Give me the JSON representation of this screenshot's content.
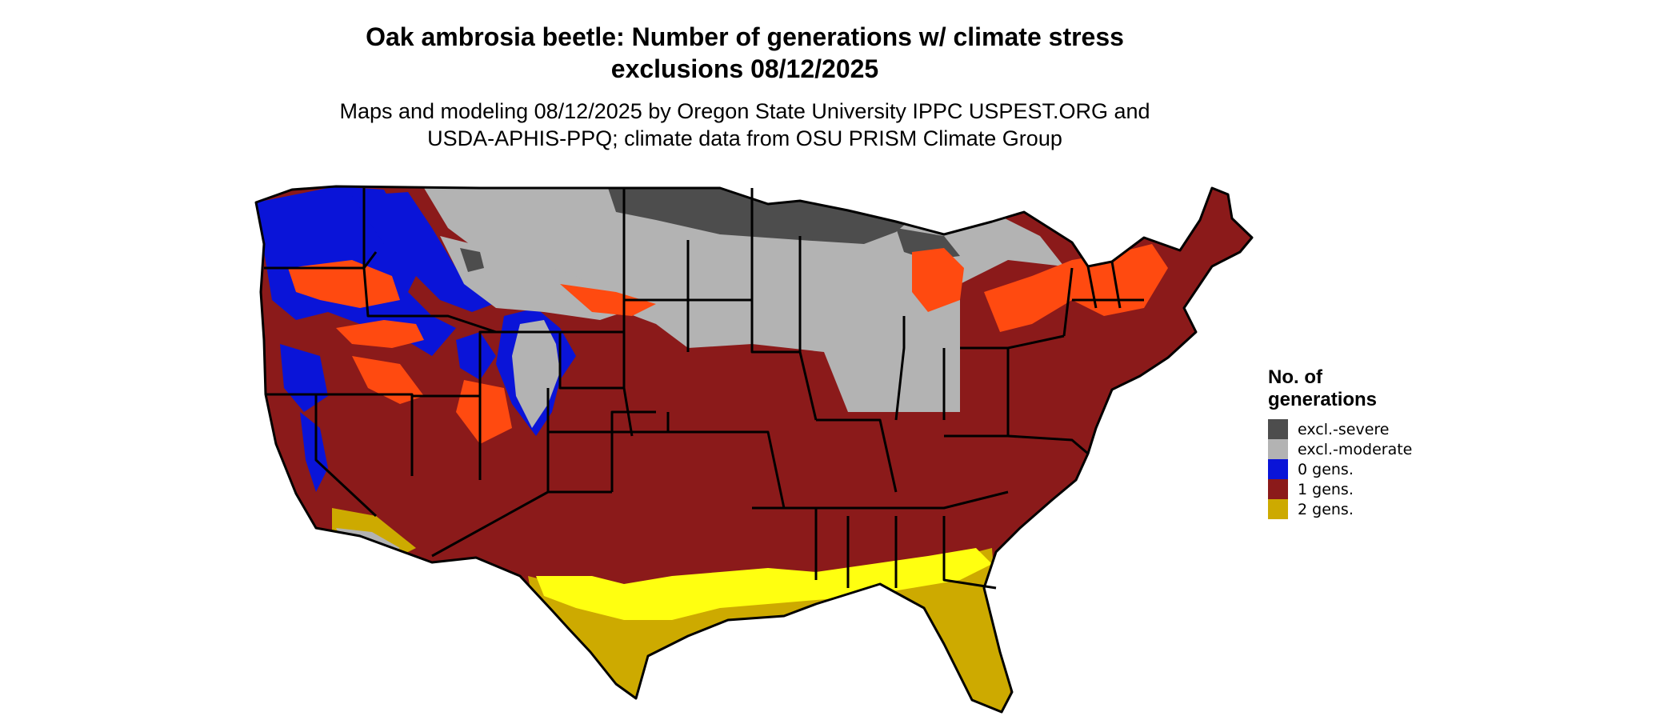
{
  "map": {
    "title_line1": "Oak ambrosia beetle: Number of generations w/ climate stress",
    "title_line2": "exclusions 08/12/2025",
    "subtitle_line1": "Maps and modeling 08/12/2025 by Oregon State University IPPC USPEST.ORG and",
    "subtitle_line2": "USDA-APHIS-PPQ; climate data from OSU PRISM Climate Group"
  },
  "legend": {
    "title_line1": "No. of",
    "title_line2": "generations",
    "items": [
      {
        "label": "excl.-severe",
        "color": "#4d4d4d"
      },
      {
        "label": "excl.-moderate",
        "color": "#b3b3b3"
      },
      {
        "label": "0 gens.",
        "color": "#0a14d8"
      },
      {
        "label": "1 gens.",
        "color": "#8b1a1a"
      },
      {
        "label": "2 gens.",
        "color": "#cdaa00"
      }
    ]
  },
  "colors": {
    "excl_severe": "#4d4d4d",
    "excl_moderate": "#b3b3b3",
    "zero_gens": "#0a14d8",
    "one_gens": "#8b1a1a",
    "one_gens_hot": "#ff4a10",
    "two_gens": "#cdaa00",
    "two_gens_bright": "#ffff10",
    "state_border": "#000000"
  }
}
